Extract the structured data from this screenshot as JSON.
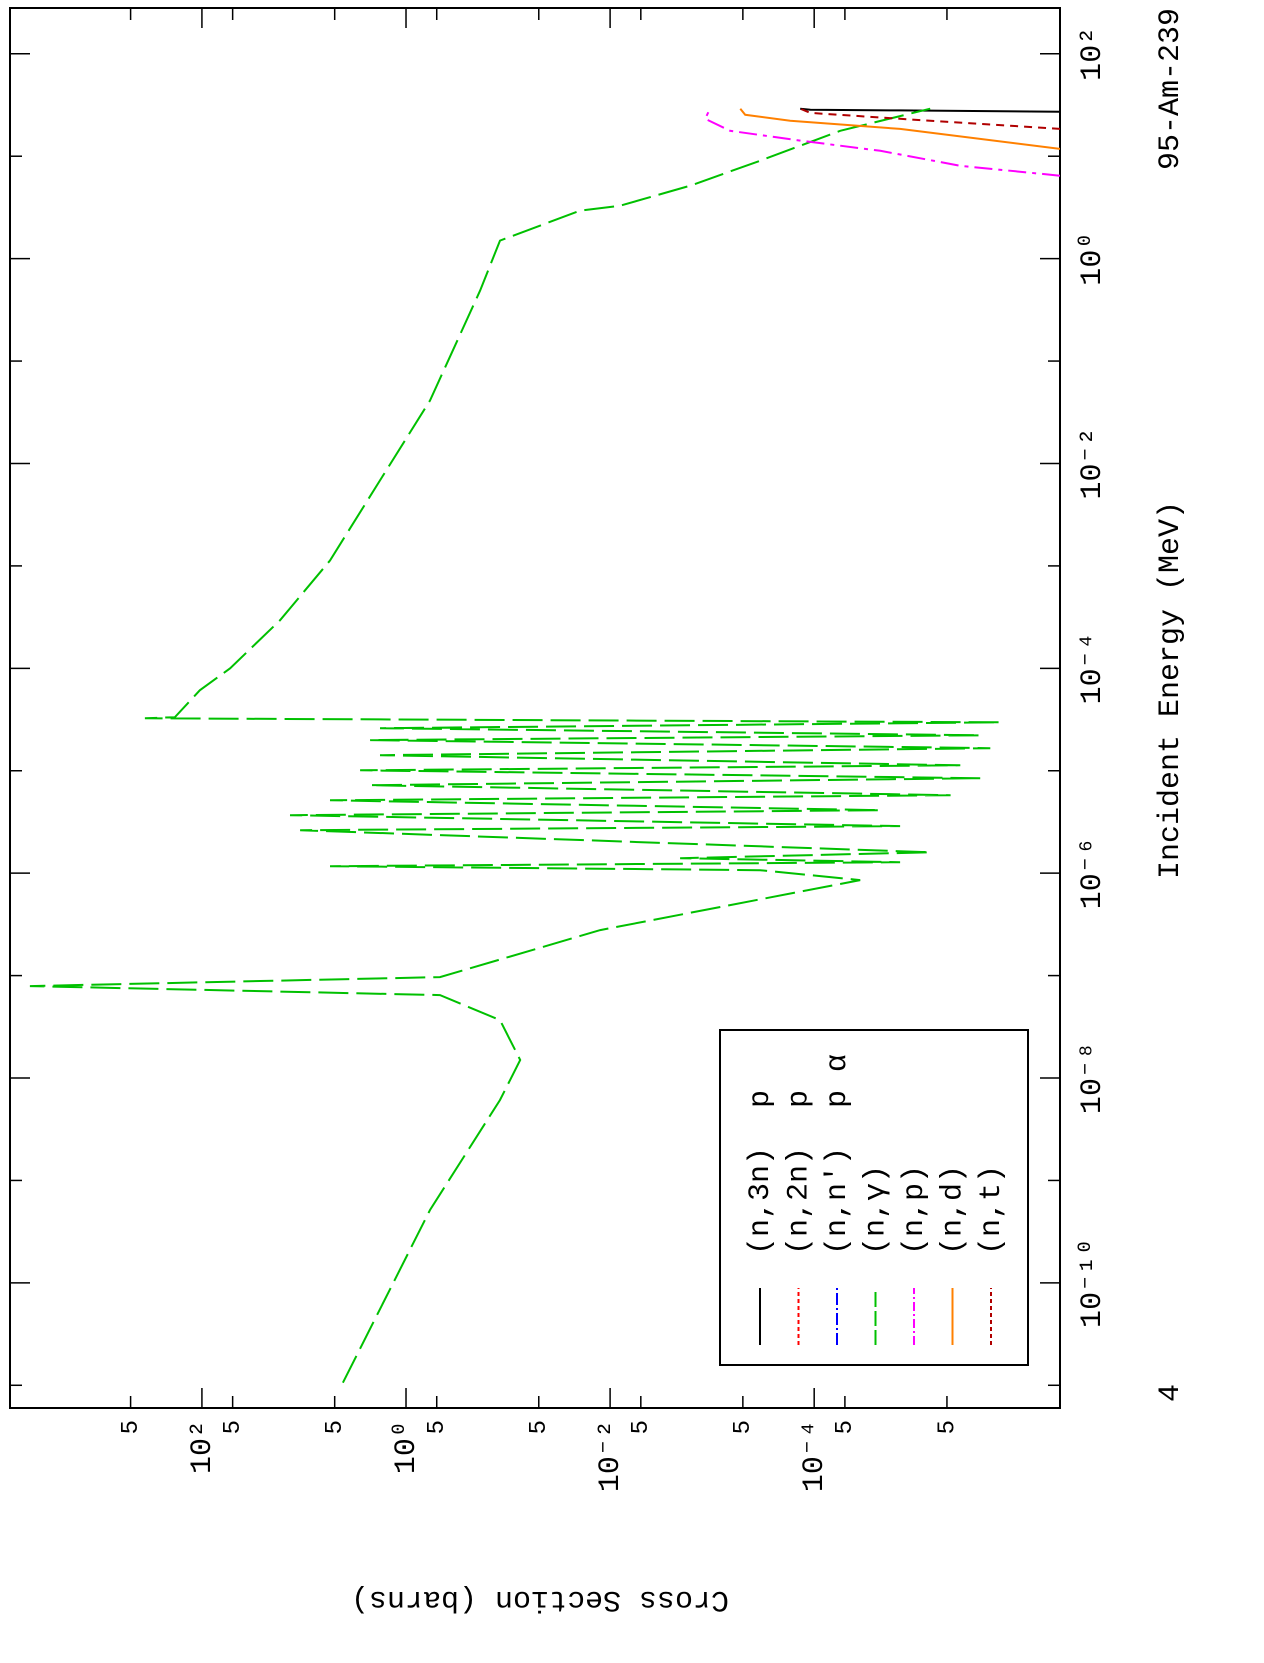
{
  "chart_data": {
    "type": "line",
    "title": "95-Am-239",
    "page_number": "4",
    "xlabel": "Incident Energy (MeV)",
    "ylabel": "Cross Section (barns)",
    "xscale": "log",
    "yscale": "log",
    "xlim": [
      6e-12,
      280
    ],
    "ylim": [
      7600,
      3.9e-07
    ],
    "xticks": [
      {
        "value": 1e-10,
        "label": "10⁻¹⁰"
      },
      {
        "value": 1e-08,
        "label": "10⁻⁸"
      },
      {
        "value": 1e-06,
        "label": "10⁻⁶"
      },
      {
        "value": 0.0001,
        "label": "10⁻⁴"
      },
      {
        "value": 0.01,
        "label": "10⁻²"
      },
      {
        "value": 1,
        "label": "10⁰"
      },
      {
        "value": 100,
        "label": "10²"
      }
    ],
    "xticks_minor": [
      1e-11,
      1e-09,
      1e-07,
      1e-05,
      0.001,
      0.1,
      10
    ],
    "yticks": [
      {
        "value": 100,
        "label": "10²"
      },
      {
        "value": 1,
        "label": "10⁰"
      },
      {
        "value": 0.01,
        "label": "10⁻²"
      },
      {
        "value": 0.0001,
        "label": "10⁻⁴"
      }
    ],
    "yticks_half": [
      {
        "value": 500,
        "label": "5"
      },
      {
        "value": 50,
        "label": "5"
      },
      {
        "value": 5,
        "label": "5"
      },
      {
        "value": 0.5,
        "label": "5"
      },
      {
        "value": 0.05,
        "label": "5"
      },
      {
        "value": 0.005,
        "label": "5"
      },
      {
        "value": 0.0005,
        "label": "5"
      },
      {
        "value": 5e-05,
        "label": "5"
      },
      {
        "value": 5e-06,
        "label": "5"
      }
    ],
    "legend": "lower-left",
    "series": [
      {
        "name": "(n,3n)",
        "flags": "p",
        "color": "#000000",
        "dash": "none",
        "x": [
          27.2,
          28.0,
          28.4,
          29.1
        ],
        "values": [
          3.9e-07,
          1.44e-05,
          0.000109,
          0.000137
        ]
      },
      {
        "name": "(n,2n)",
        "flags": "p",
        "color": "#ff0000",
        "dash": "8,6",
        "x": [],
        "values": []
      },
      {
        "name": "(n,n′)",
        "flags": "p α",
        "color": "#0000ff",
        "dash": "24,6,4,6",
        "x": [],
        "values": []
      },
      {
        "name": "(n,γ)",
        "color": "#00c000",
        "dash": "30,8",
        "x": [
          1.06e-11,
          5.15e-10,
          6.1e-09,
          1.5e-08,
          3.68e-08,
          6.45e-08,
          7.9e-08,
          9.67e-08,
          2.78e-07,
          8.55e-07,
          1.07e-06,
          1.17e-06,
          1.28e-06,
          1.4e-06,
          1.6e-06,
          2.63e-06,
          2.88e-06,
          3.68e-06,
          4.12e-06,
          5.15e-06,
          5.77e-06,
          7.22e-06,
          8.45e-06,
          1.01e-05,
          1.13e-05,
          1.42e-05,
          1.66e-05,
          1.99e-05,
          2.22e-05,
          2.6e-05,
          2.97e-05,
          3.25e-05,
          3.33e-05,
          6.1e-05,
          0.0001,
          0.000294,
          0.00113,
          0.00683,
          0.0412,
          0.488,
          1.5,
          2.94,
          3.29,
          5.15,
          9.04,
          17.7,
          29.1
        ],
        "values": [
          4.15,
          0.582,
          0.12,
          0.076,
          0.12,
          0.464,
          4850,
          0.464,
          0.0125,
          3.54e-05,
          0.000338,
          5.56,
          1.44e-05,
          0.00206,
          7.3e-06,
          10.9,
          1.44e-05,
          13.7,
          2.25e-05,
          5.56,
          4.6e-06,
          2.25,
          2.36e-06,
          2.82,
          3.7e-06,
          1.8,
          1.88e-06,
          2.25,
          2.36e-06,
          1.8,
          1.5e-06,
          362,
          184,
          105,
          53,
          17.2,
          5.56,
          1.8,
          0.582,
          0.188,
          0.12,
          0.0197,
          0.00798,
          0.00164,
          0.000338,
          5.56e-05,
          7.3e-06
        ]
      },
      {
        "name": "(n,p)",
        "color": "#ff00ff",
        "dash": "18,6,4,6",
        "x": [
          6.46,
          8.07,
          11.3,
          14.2,
          17.7,
          23.2,
          29.1
        ],
        "values": [
          3.9e-07,
          3.7e-06,
          2.25e-05,
          0.000137,
          0.000667,
          0.00117,
          0.00105
        ]
      },
      {
        "name": "(n,d)",
        "color": "#ff8000",
        "dash": "none",
        "x": [
          11.8,
          18.5,
          22.2,
          25.4,
          29.1
        ],
        "values": [
          3.9e-07,
          1.44e-05,
          0.000172,
          0.000474,
          0.00053
        ]
      },
      {
        "name": "(n,t)",
        "color": "#b00000",
        "dash": "8,6",
        "x": [
          18.5,
          23.2,
          26.5,
          29.1
        ],
        "values": [
          3.9e-07,
          1.44e-05,
          0.000109,
          0.000137
        ]
      }
    ]
  }
}
